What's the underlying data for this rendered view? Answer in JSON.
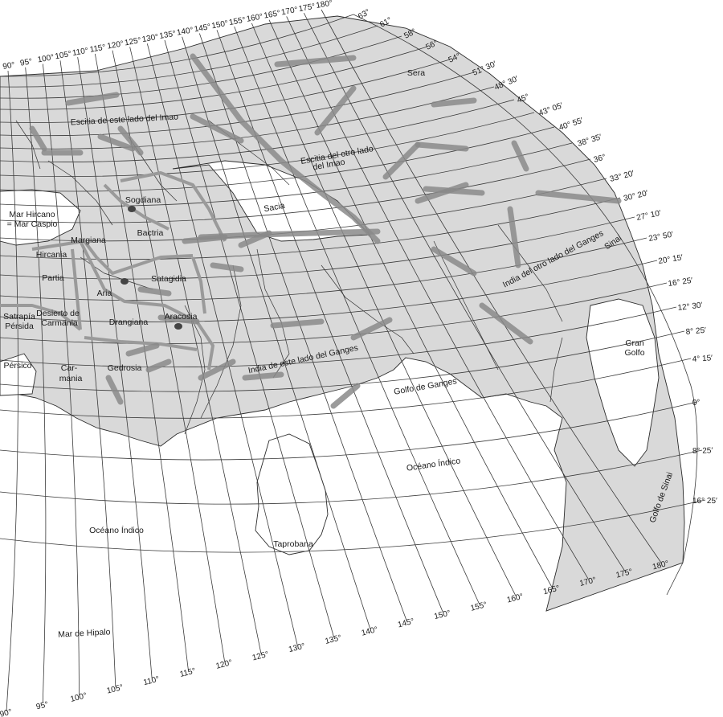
{
  "map": {
    "colors": {
      "land": "#d9d9d9",
      "sea": "#ffffff",
      "mountains": "#8a8a8a",
      "borders": "#9a9a9a",
      "grid": "#3a3a3a",
      "cities": "#444444"
    },
    "top_longitude_labels": [
      "90°",
      "95°",
      "100°",
      "105°",
      "110°",
      "115°",
      "120°",
      "125°",
      "130°",
      "135°",
      "140°",
      "145°",
      "150°",
      "155°",
      "160°",
      "165°",
      "170°",
      "175°",
      "180°"
    ],
    "bottom_longitude_labels": [
      "90°",
      "95°",
      "100°",
      "105°",
      "110°",
      "115°",
      "120°",
      "125°",
      "130°",
      "135°",
      "140°",
      "145°",
      "150°",
      "155°",
      "160°",
      "165°",
      "170°",
      "175°",
      "180°"
    ],
    "latitude_labels": [
      "63°",
      "61°",
      "58°",
      "56°",
      "54°",
      "51° 30′",
      "48° 30′",
      "45°",
      "43° 05′",
      "40° 55′",
      "38° 35′",
      "36°",
      "33° 20′",
      "30° 20′",
      "27° 10′",
      "23° 50′",
      "20° 15′",
      "16° 25′",
      "12° 30′",
      "8° 25′",
      "4° 15′",
      "0°",
      "8° 25′",
      "16° 25′"
    ],
    "places": [
      {
        "name": "Sera"
      },
      {
        "name": "Escitia de este lado del Imao"
      },
      {
        "name": "Escitia del otro lado"
      },
      {
        "name": "del Imao"
      },
      {
        "name": "Sogdiana"
      },
      {
        "name": "Mar Hircano"
      },
      {
        "name": "= Mar Caspio"
      },
      {
        "name": "Sacia"
      },
      {
        "name": "Margiana"
      },
      {
        "name": "Bactria"
      },
      {
        "name": "Hircania"
      },
      {
        "name": "Partia"
      },
      {
        "name": "Aria"
      },
      {
        "name": "Satagidia"
      },
      {
        "name": "Sinai"
      },
      {
        "name": "India del otro lado del Ganges"
      },
      {
        "name": "Satrapía"
      },
      {
        "name": "Pérsida"
      },
      {
        "name": "Desierto de"
      },
      {
        "name": "Carmania"
      },
      {
        "name": "Drangiana"
      },
      {
        "name": "Aracosia"
      },
      {
        "name": "Gran"
      },
      {
        "name": "Golfo"
      },
      {
        "name": "Pérsico"
      },
      {
        "name": "Car-"
      },
      {
        "name": "mania"
      },
      {
        "name": "Gedrosia"
      },
      {
        "name": "India de este lado del Ganges"
      },
      {
        "name": "Golfo de Ganges"
      },
      {
        "name": "Océano Índico"
      },
      {
        "name": "Golfo de Sinai"
      },
      {
        "name": "Taprobana"
      },
      {
        "name": "Océano Índico"
      },
      {
        "name": "Mar de Hipalo"
      }
    ]
  }
}
